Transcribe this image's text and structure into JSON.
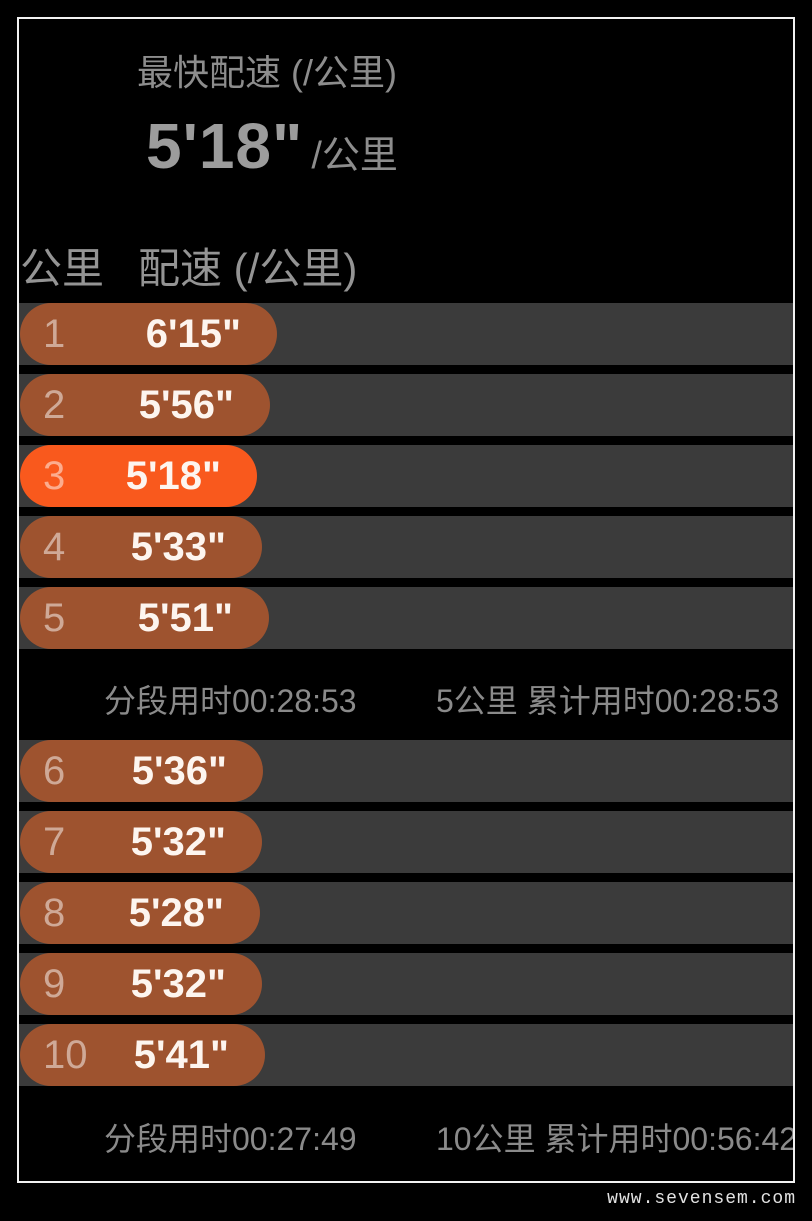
{
  "header": {
    "title": "最快配速 (/公里)",
    "best_pace": "5'18\"",
    "best_pace_unit": "/公里"
  },
  "table_header": {
    "km_col": "公里",
    "pace_col": "配速 (/公里)"
  },
  "chart_data": {
    "type": "bar",
    "orientation": "horizontal",
    "title": "配速 (/公里)",
    "xlabel": "配速 (/公里)",
    "ylabel": "公里",
    "categories": [
      "1",
      "2",
      "3",
      "4",
      "5",
      "6",
      "7",
      "8",
      "9",
      "10"
    ],
    "values": [
      "6'15\"",
      "5'56\"",
      "5'18\"",
      "5'33\"",
      "5'51\"",
      "5'36\"",
      "5'32\"",
      "5'28\"",
      "5'32\"",
      "5'41\""
    ],
    "values_seconds": [
      375,
      356,
      318,
      333,
      351,
      336,
      332,
      328,
      332,
      341
    ],
    "highlight_index": 2,
    "highlight_meaning": "fastest split",
    "group_split_index": 5,
    "legend": false,
    "grid": false
  },
  "summaries": [
    {
      "segment": "分段用时00:28:53",
      "cumulative": "5公里 累计用时00:28:53"
    },
    {
      "segment": "分段用时00:27:49",
      "cumulative": "10公里 累计用时00:56:42"
    }
  ],
  "watermark": "www.sevensem.com",
  "colors": {
    "bar": "#9e532f",
    "bar-best": "#f9591d",
    "track": "#3b3b3b",
    "frame-border": "#f2f2f2",
    "text-dim": "#8d8d8d",
    "text-big": "#9c9c9c",
    "text-header": "#949494",
    "text-summary": "#8a8a8a",
    "watermark": "#e2e2e2"
  }
}
